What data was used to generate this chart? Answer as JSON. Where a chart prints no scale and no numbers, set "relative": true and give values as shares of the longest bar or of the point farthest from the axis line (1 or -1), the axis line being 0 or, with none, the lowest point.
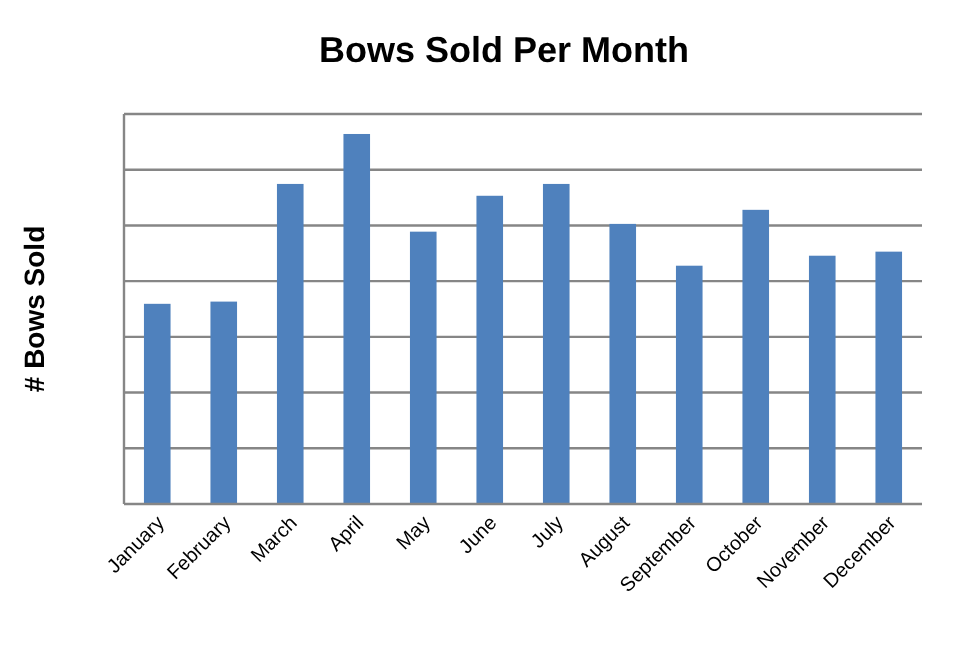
{
  "chart_data": {
    "type": "bar",
    "title": "Bows Sold Per Month",
    "ylabel": "# Bows Sold",
    "relative": true,
    "grid": true,
    "color": "#4f81bd",
    "categories": [
      "January",
      "February",
      "March",
      "April",
      "May",
      "June",
      "July",
      "August",
      "September",
      "October",
      "November",
      "December"
    ],
    "values": [
      0.541,
      0.547,
      0.865,
      1,
      0.736,
      0.833,
      0.865,
      0.757,
      0.644,
      0.795,
      0.671,
      0.682
    ]
  }
}
